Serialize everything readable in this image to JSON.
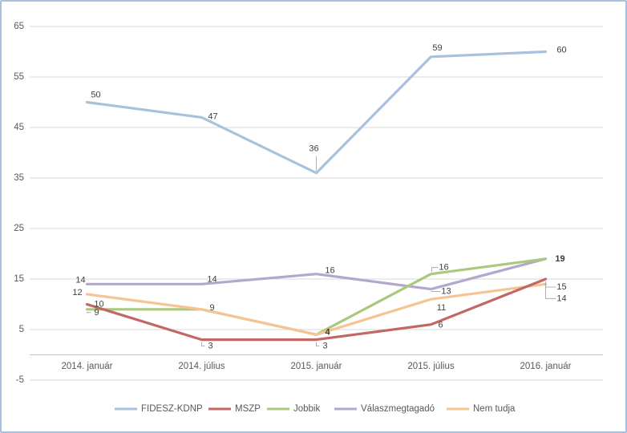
{
  "window": {
    "border_color": "#a6c0df",
    "background": "#ffffff"
  },
  "chart_data": {
    "type": "line",
    "title": "",
    "categories": [
      "2014. január",
      "2014. július",
      "2015. január",
      "2015. július",
      "2016. január"
    ],
    "series": [
      {
        "name": "FIDESZ-KDNP",
        "color": "#a8c2de",
        "values": [
          50,
          47,
          36,
          59,
          60
        ]
      },
      {
        "name": "MSZP",
        "color": "#c26864",
        "values": [
          10,
          3,
          3,
          6,
          15
        ]
      },
      {
        "name": "Jobbik",
        "color": "#aac87e",
        "values": [
          9,
          9,
          4,
          16,
          19
        ]
      },
      {
        "name": "Válaszmegtagadó",
        "color": "#b4a7cd",
        "values": [
          14,
          14,
          16,
          13,
          19
        ]
      },
      {
        "name": "Nem tudja",
        "color": "#f5c492",
        "values": [
          12,
          9,
          4,
          11,
          14
        ]
      }
    ],
    "y_ticks": [
      -5,
      5,
      15,
      25,
      35,
      45,
      55,
      65
    ],
    "ylim": [
      -5,
      68
    ],
    "grid": true,
    "legend_position": "bottom",
    "gridline_color": "#d9d9d9",
    "axis_line_color": "#c3c3c3",
    "leader_line_color": "#9e9e9e",
    "axis_text_color": "#595959",
    "label_text_color": "#404040"
  }
}
